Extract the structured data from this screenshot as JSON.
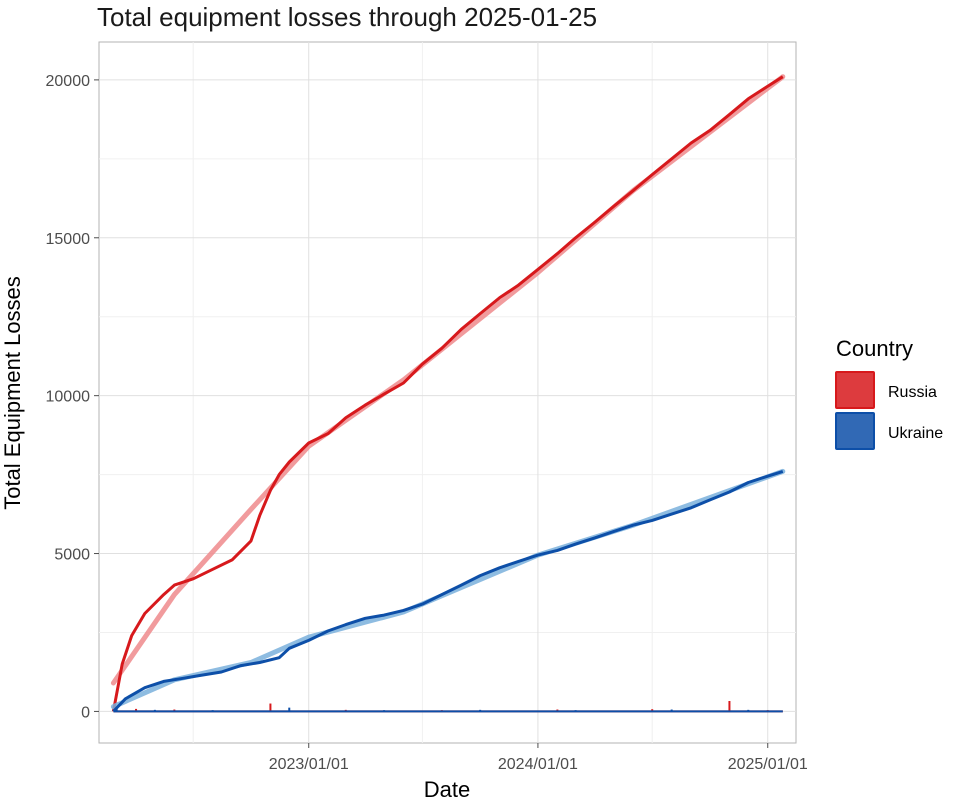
{
  "chart_data": {
    "type": "line",
    "title": "Total equipment losses through 2025-01-25",
    "xlabel": "Date",
    "ylabel": "Total Equipment Losses",
    "x_ticks": [
      "2023/01/01",
      "2024/01/01",
      "2025/01/01"
    ],
    "y_ticks": [
      0,
      5000,
      10000,
      15000,
      20000
    ],
    "xlim": [
      "2022-02-01",
      "2025-02-15"
    ],
    "ylim": [
      -1000,
      21200
    ],
    "grid": true,
    "legend": {
      "title": "Country",
      "placement": "right",
      "entries": [
        "Russia",
        "Ukraine"
      ]
    },
    "series": [
      {
        "name": "Russia",
        "color": "#d7191c",
        "smooth_color": "#ee8a8c",
        "cumulative": [
          [
            "2022-02-24",
            0
          ],
          [
            "2022-03-10",
            1500
          ],
          [
            "2022-03-25",
            2400
          ],
          [
            "2022-04-15",
            3100
          ],
          [
            "2022-05-15",
            3700
          ],
          [
            "2022-06-01",
            4000
          ],
          [
            "2022-07-01",
            4200
          ],
          [
            "2022-08-01",
            4500
          ],
          [
            "2022-09-01",
            4800
          ],
          [
            "2022-10-01",
            5400
          ],
          [
            "2022-10-15",
            6200
          ],
          [
            "2022-11-01",
            7000
          ],
          [
            "2022-11-15",
            7500
          ],
          [
            "2022-12-01",
            7900
          ],
          [
            "2023-01-01",
            8500
          ],
          [
            "2023-02-01",
            8800
          ],
          [
            "2023-03-01",
            9300
          ],
          [
            "2023-04-01",
            9700
          ],
          [
            "2023-05-01",
            10050
          ],
          [
            "2023-06-01",
            10400
          ],
          [
            "2023-07-01",
            11000
          ],
          [
            "2023-08-01",
            11500
          ],
          [
            "2023-09-01",
            12100
          ],
          [
            "2023-10-01",
            12600
          ],
          [
            "2023-11-01",
            13100
          ],
          [
            "2023-12-01",
            13500
          ],
          [
            "2024-01-01",
            14000
          ],
          [
            "2024-02-01",
            14500
          ],
          [
            "2024-03-01",
            15000
          ],
          [
            "2024-04-01",
            15500
          ],
          [
            "2024-05-01",
            16000
          ],
          [
            "2024-06-01",
            16500
          ],
          [
            "2024-07-01",
            17000
          ],
          [
            "2024-08-01",
            17500
          ],
          [
            "2024-09-01",
            18000
          ],
          [
            "2024-10-01",
            18400
          ],
          [
            "2024-11-01",
            18900
          ],
          [
            "2024-12-01",
            19400
          ],
          [
            "2025-01-01",
            19800
          ],
          [
            "2025-01-25",
            20100
          ]
        ],
        "trend": [
          [
            "2022-02-24",
            900
          ],
          [
            "2022-06-01",
            3700
          ],
          [
            "2022-10-01",
            6400
          ],
          [
            "2023-01-01",
            8400
          ],
          [
            "2023-06-01",
            10500
          ],
          [
            "2024-01-01",
            13900
          ],
          [
            "2024-06-01",
            16500
          ],
          [
            "2025-01-25",
            20100
          ]
        ],
        "daily": [
          [
            "2022-03-01",
            120
          ],
          [
            "2022-04-01",
            80
          ],
          [
            "2022-06-01",
            60
          ],
          [
            "2022-11-01",
            250
          ],
          [
            "2023-03-01",
            50
          ],
          [
            "2023-08-01",
            40
          ],
          [
            "2024-02-01",
            60
          ],
          [
            "2024-07-01",
            70
          ],
          [
            "2024-11-01",
            330
          ],
          [
            "2025-01-01",
            40
          ]
        ]
      },
      {
        "name": "Ukraine",
        "color": "#0d4fa8",
        "smooth_color": "#7ab0dc",
        "cumulative": [
          [
            "2022-02-24",
            0
          ],
          [
            "2022-03-15",
            400
          ],
          [
            "2022-04-15",
            750
          ],
          [
            "2022-05-15",
            950
          ],
          [
            "2022-06-15",
            1050
          ],
          [
            "2022-07-15",
            1150
          ],
          [
            "2022-08-15",
            1250
          ],
          [
            "2022-09-15",
            1450
          ],
          [
            "2022-10-15",
            1550
          ],
          [
            "2022-11-15",
            1700
          ],
          [
            "2022-12-01",
            2000
          ],
          [
            "2023-01-01",
            2250
          ],
          [
            "2023-02-01",
            2550
          ],
          [
            "2023-03-01",
            2750
          ],
          [
            "2023-04-01",
            2950
          ],
          [
            "2023-05-01",
            3050
          ],
          [
            "2023-06-01",
            3200
          ],
          [
            "2023-07-01",
            3400
          ],
          [
            "2023-08-01",
            3700
          ],
          [
            "2023-09-01",
            4000
          ],
          [
            "2023-10-01",
            4300
          ],
          [
            "2023-11-01",
            4550
          ],
          [
            "2023-12-01",
            4750
          ],
          [
            "2024-01-01",
            4950
          ],
          [
            "2024-02-01",
            5100
          ],
          [
            "2024-03-01",
            5300
          ],
          [
            "2024-04-01",
            5500
          ],
          [
            "2024-05-01",
            5700
          ],
          [
            "2024-06-01",
            5900
          ],
          [
            "2024-07-01",
            6050
          ],
          [
            "2024-08-01",
            6250
          ],
          [
            "2024-09-01",
            6450
          ],
          [
            "2024-10-01",
            6700
          ],
          [
            "2024-11-01",
            6950
          ],
          [
            "2024-12-01",
            7250
          ],
          [
            "2025-01-01",
            7450
          ],
          [
            "2025-01-25",
            7600
          ]
        ],
        "trend": [
          [
            "2022-02-24",
            150
          ],
          [
            "2022-06-01",
            1000
          ],
          [
            "2022-10-01",
            1550
          ],
          [
            "2023-01-01",
            2350
          ],
          [
            "2023-06-01",
            3150
          ],
          [
            "2024-01-01",
            4950
          ],
          [
            "2024-06-01",
            5900
          ],
          [
            "2025-01-25",
            7600
          ]
        ],
        "daily": [
          [
            "2022-03-01",
            80
          ],
          [
            "2022-05-01",
            50
          ],
          [
            "2022-08-01",
            40
          ],
          [
            "2022-12-01",
            120
          ],
          [
            "2023-05-01",
            40
          ],
          [
            "2023-10-01",
            50
          ],
          [
            "2024-03-01",
            40
          ],
          [
            "2024-08-01",
            60
          ],
          [
            "2024-12-01",
            50
          ]
        ]
      }
    ]
  }
}
